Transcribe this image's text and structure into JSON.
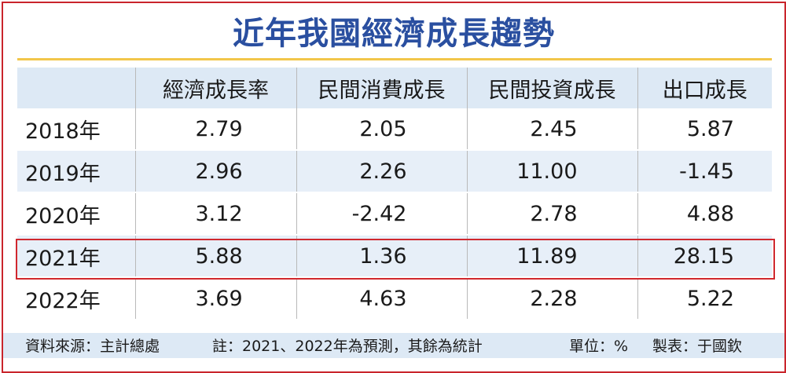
{
  "title": "近年我國經濟成長趨勢",
  "table": {
    "columns": [
      "",
      "經濟成長率",
      "民間消費成長",
      "民間投資成長",
      "出口成長"
    ],
    "rows": [
      {
        "year": "2018年",
        "gdp": "2.79",
        "consumption": "2.05",
        "investment": "2.45",
        "export": "5.87"
      },
      {
        "year": "2019年",
        "gdp": "2.96",
        "consumption": "2.26",
        "investment": "11.00",
        "export": "-1.45"
      },
      {
        "year": "2020年",
        "gdp": "3.12",
        "consumption": "-2.42",
        "investment": "2.78",
        "export": "4.88"
      },
      {
        "year": "2021年",
        "gdp": "5.88",
        "consumption": "1.36",
        "investment": "11.89",
        "export": "28.15"
      },
      {
        "year": "2022年",
        "gdp": "3.69",
        "consumption": "4.63",
        "investment": "2.28",
        "export": "5.22"
      }
    ]
  },
  "footer": {
    "source": "資料來源：主計總處",
    "note": "註：2021、2022年為預測，其餘為統計",
    "unit": "單位：%",
    "maker": "製表：于國欽"
  },
  "colors": {
    "title": "#2a4fa0",
    "border": "#c9252c",
    "rule": "#f2c64a",
    "row_alt": "#e7eff8",
    "highlight": "#d0282e"
  }
}
